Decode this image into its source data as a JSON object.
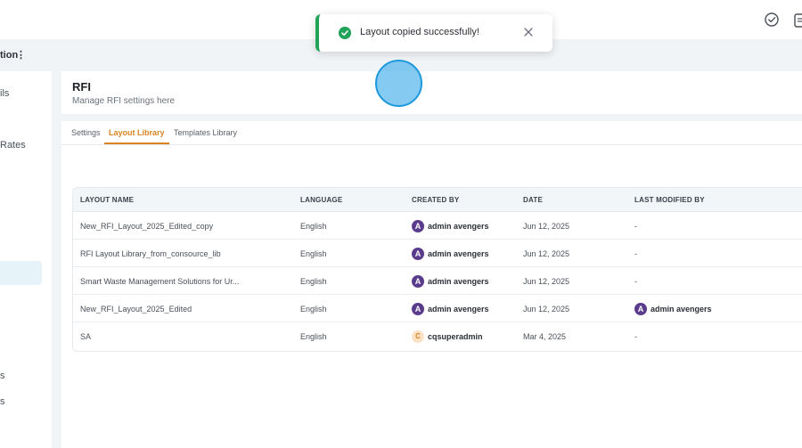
{
  "topbar": {
    "icons": [
      "check-circle-icon",
      "clipboard-icon"
    ]
  },
  "subheader": {
    "project_label": "tion",
    "menu_glyph": "⋮"
  },
  "sidebar": {
    "items": [
      "ils",
      "Rates",
      "s",
      "s"
    ]
  },
  "page": {
    "title": "RFI",
    "subtitle": "Manage RFI settings here"
  },
  "tabs": [
    "Settings",
    "Layout Library",
    "Templates Library"
  ],
  "active_tab": "Layout Library",
  "table": {
    "columns": [
      "LAYOUT NAME",
      "LANGUAGE",
      "CREATED BY",
      "DATE",
      "LAST MODIFIED BY"
    ],
    "rows": [
      {
        "name": "New_RFI_Layout_2025_Edited_copy",
        "language": "English",
        "created_by": "admin avengers",
        "created_avatar": "A",
        "date": "Jun 12, 2025",
        "modified_by": "-",
        "modified_avatar": ""
      },
      {
        "name": "RFI Layout Library_from_consource_lib",
        "language": "English",
        "created_by": "admin avengers",
        "created_avatar": "A",
        "date": "Jun 12, 2025",
        "modified_by": "-",
        "modified_avatar": ""
      },
      {
        "name": "Smart Waste Management Solutions for Ur...",
        "language": "English",
        "created_by": "admin avengers",
        "created_avatar": "A",
        "date": "Jun 12, 2025",
        "modified_by": "-",
        "modified_avatar": ""
      },
      {
        "name": "New_RFI_Layout_2025_Edited",
        "language": "English",
        "created_by": "admin avengers",
        "created_avatar": "A",
        "date": "Jun 12, 2025",
        "modified_by": "admin avengers",
        "modified_avatar": "A"
      },
      {
        "name": "SA",
        "language": "English",
        "created_by": "cqsuperadmin",
        "created_avatar": "C",
        "date": "Mar 4, 2025",
        "modified_by": "-",
        "modified_avatar": ""
      }
    ]
  },
  "toast": {
    "message": "Layout copied successfully!",
    "status_color": "#22a35a"
  },
  "colors": {
    "accent": "#d98421",
    "success": "#22a35a",
    "highlight": "#1e98dc"
  }
}
